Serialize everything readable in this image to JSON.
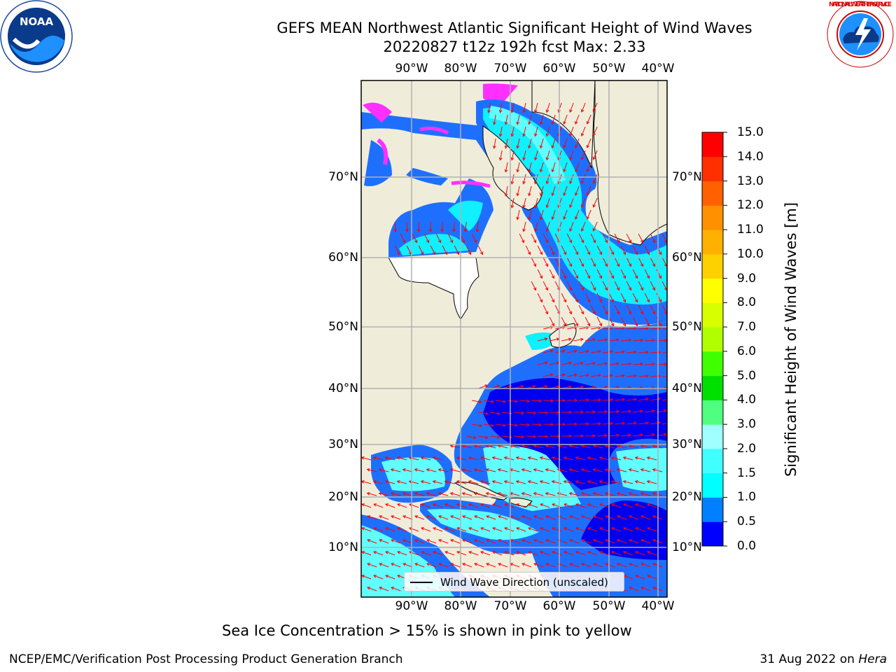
{
  "title": {
    "line1": "GEFS MEAN Northwest Atlantic Significant Height of Wind Waves",
    "line2": "20220827 t12z 192h fcst   Max: 2.33"
  },
  "axes": {
    "lon_labels": [
      "90°W",
      "80°W",
      "70°W",
      "60°W",
      "50°W",
      "40°W"
    ],
    "lat_labels": [
      "70°N",
      "60°N",
      "50°N",
      "40°N",
      "30°N",
      "20°N",
      "10°N"
    ]
  },
  "colorbar": {
    "label": "Significant Height of Wind Waves [m]",
    "ticks": [
      "0.0",
      "0.5",
      "1.0",
      "1.5",
      "2.0",
      "3.0",
      "4.0",
      "5.0",
      "6.0",
      "7.0",
      "8.0",
      "9.0",
      "10.0",
      "11.0",
      "12.0",
      "13.0",
      "14.0",
      "15.0"
    ],
    "colors": [
      "#0000ff",
      "#0080ff",
      "#00ffff",
      "#40ffff",
      "#a0ffff",
      "#50ff80",
      "#00e000",
      "#40ff00",
      "#b0ff00",
      "#d8ff00",
      "#ffff00",
      "#ffd000",
      "#ffb000",
      "#ff9000",
      "#ff6000",
      "#ff3000",
      "#ff0000"
    ]
  },
  "legend": {
    "label": "Wind Wave Direction (unscaled)"
  },
  "note": "Sea Ice Concentration > 15% is shown in pink to yellow",
  "footer": {
    "left": "NCEP/EMC/Verification Post Processing Product Generation Branch",
    "right_date": "31 Aug 2022 on ",
    "right_host": "Hera"
  },
  "logos": {
    "left": "NOAA",
    "right": "NATIONAL WEATHER SERVICE"
  },
  "map_colors": {
    "land": "#efedda",
    "deep": "#0000ee",
    "mid": "#1f6fff",
    "shallow": "#10f0ff",
    "light": "#60ffff",
    "ice": "#ff30ff",
    "arrow": "#ff0000",
    "grid": "#b0b0b0"
  }
}
